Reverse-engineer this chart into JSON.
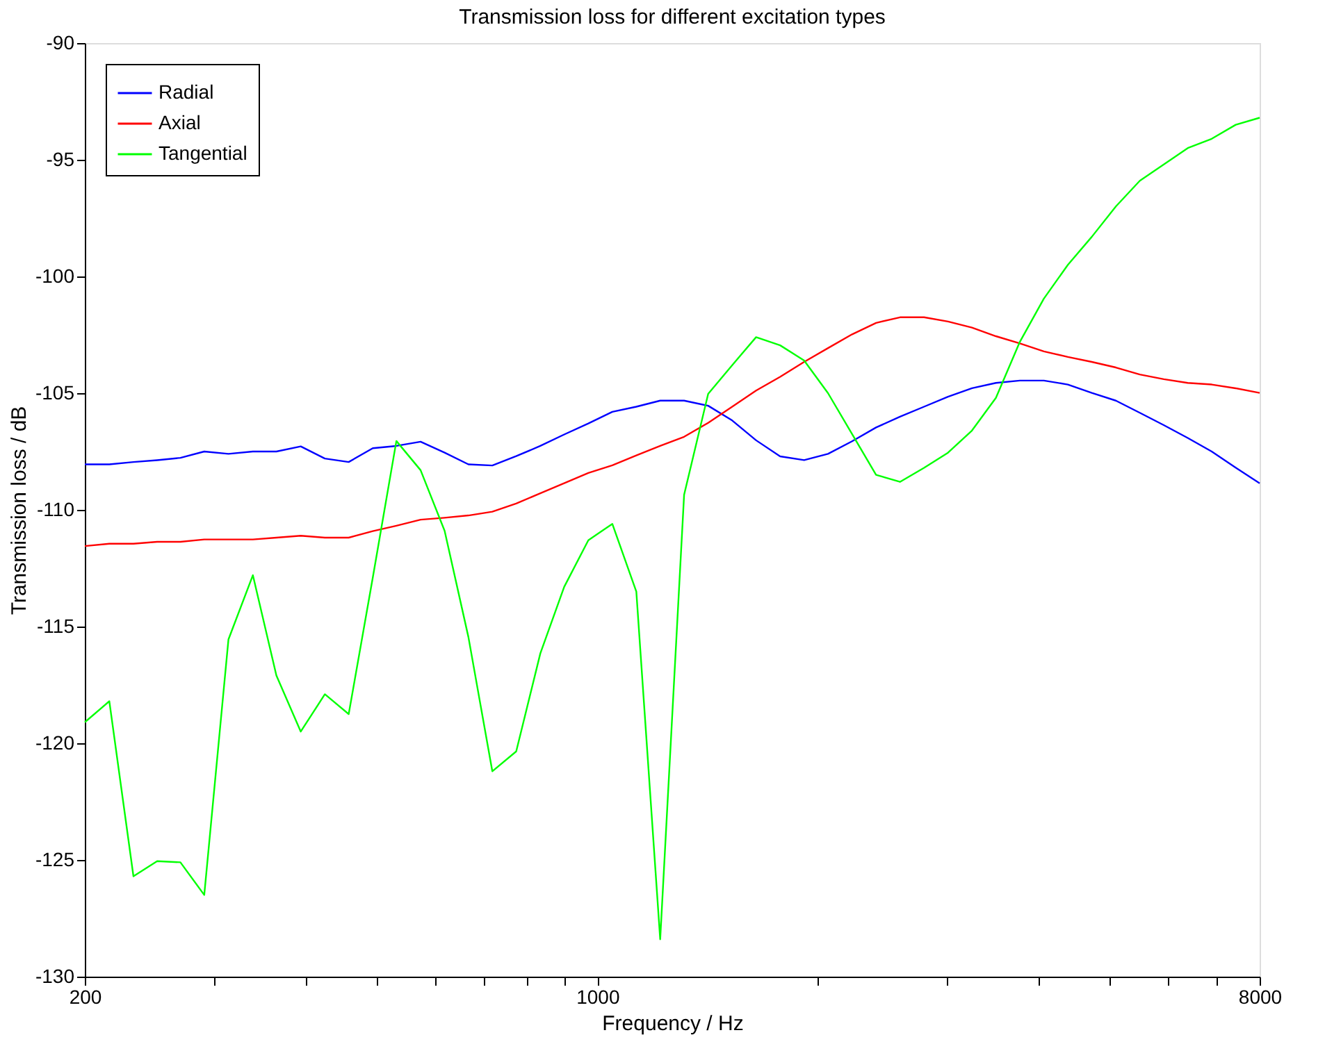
{
  "chart_data": {
    "type": "line",
    "title": "Transmission loss for different excitation types",
    "xlabel": "Frequency / Hz",
    "ylabel": "Transmission loss / dB",
    "log": "x",
    "x": [
      200,
      216,
      233,
      251,
      270,
      291,
      314,
      339,
      365,
      394,
      425,
      458,
      494,
      532,
      574,
      619,
      667,
      719,
      775,
      836,
      901,
      972,
      1048,
      1130,
      1218,
      1313,
      1416,
      1527,
      1646,
      1775,
      1914,
      2063,
      2225,
      2399,
      2586,
      2789,
      3007,
      3242,
      3495,
      3768,
      4063,
      4381,
      4723,
      5093,
      5491,
      5920,
      6383,
      6882,
      7420,
      8000
    ],
    "series": [
      {
        "name": "Radial",
        "color": "#0000ff",
        "values": [
          -108.05,
          -108.05,
          -107.95,
          -107.87,
          -107.77,
          -107.5,
          -107.6,
          -107.5,
          -107.5,
          -107.28,
          -107.8,
          -107.95,
          -107.36,
          -107.26,
          -107.08,
          -107.55,
          -108.05,
          -108.1,
          -107.7,
          -107.26,
          -106.77,
          -106.3,
          -105.8,
          -105.58,
          -105.32,
          -105.32,
          -105.54,
          -106.17,
          -107.02,
          -107.71,
          -107.87,
          -107.6,
          -107.06,
          -106.47,
          -106.01,
          -105.58,
          -105.15,
          -104.79,
          -104.56,
          -104.46,
          -104.46,
          -104.63,
          -104.99,
          -105.32,
          -105.84,
          -106.37,
          -106.92,
          -107.5,
          -108.19,
          -108.86
        ]
      },
      {
        "name": "Axial",
        "color": "#ff0000",
        "values": [
          -111.55,
          -111.45,
          -111.45,
          -111.37,
          -111.37,
          -111.27,
          -111.27,
          -111.27,
          -111.19,
          -111.11,
          -111.19,
          -111.19,
          -110.91,
          -110.68,
          -110.42,
          -110.34,
          -110.24,
          -110.08,
          -109.73,
          -109.29,
          -108.86,
          -108.42,
          -108.09,
          -107.67,
          -107.26,
          -106.87,
          -106.27,
          -105.58,
          -104.89,
          -104.3,
          -103.66,
          -103.07,
          -102.48,
          -101.99,
          -101.75,
          -101.75,
          -101.93,
          -102.19,
          -102.56,
          -102.87,
          -103.21,
          -103.45,
          -103.66,
          -103.9,
          -104.2,
          -104.4,
          -104.56,
          -104.63,
          -104.79,
          -104.99
        ]
      },
      {
        "name": "Tangential",
        "color": "#00ff00",
        "values": [
          -119.1,
          -118.2,
          -125.7,
          -125.05,
          -125.1,
          -126.5,
          -115.55,
          -112.8,
          -117.1,
          -119.5,
          -117.9,
          -118.75,
          -112.9,
          -107.05,
          -108.3,
          -110.9,
          -115.45,
          -121.2,
          -120.35,
          -116.15,
          -113.3,
          -111.3,
          -110.6,
          -113.5,
          -128.4,
          -109.35,
          -105.03,
          -103.8,
          -102.6,
          -102.95,
          -103.6,
          -105.0,
          -106.75,
          -108.5,
          -108.8,
          -108.2,
          -107.55,
          -106.6,
          -105.2,
          -102.8,
          -100.95,
          -99.5,
          -98.3,
          -97.0,
          -95.9,
          -95.2,
          -94.5,
          -94.1,
          -93.5,
          -93.2
        ]
      }
    ],
    "xlim": [
      200,
      8000
    ],
    "xticks": [
      200,
      {
        "value": 300,
        "label": null
      },
      {
        "value": 400,
        "label": null
      },
      {
        "value": 500,
        "label": null
      },
      {
        "value": 600,
        "label": null
      },
      {
        "value": 700,
        "label": null
      },
      {
        "value": 800,
        "label": null
      },
      {
        "value": 900,
        "label": null
      },
      1000,
      {
        "value": 2000,
        "label": null
      },
      {
        "value": 3000,
        "label": null
      },
      {
        "value": 4000,
        "label": null
      },
      {
        "value": 5000,
        "label": null
      },
      {
        "value": 6000,
        "label": null
      },
      {
        "value": 7000,
        "label": null
      },
      8000
    ],
    "ylim": [
      -130,
      -90
    ],
    "yticks": [
      -130,
      -125,
      -120,
      -115,
      -110,
      -105,
      -100,
      -95,
      -90
    ],
    "grid": false,
    "legend": "top left",
    "marker": "none",
    "line_style": "solid"
  }
}
